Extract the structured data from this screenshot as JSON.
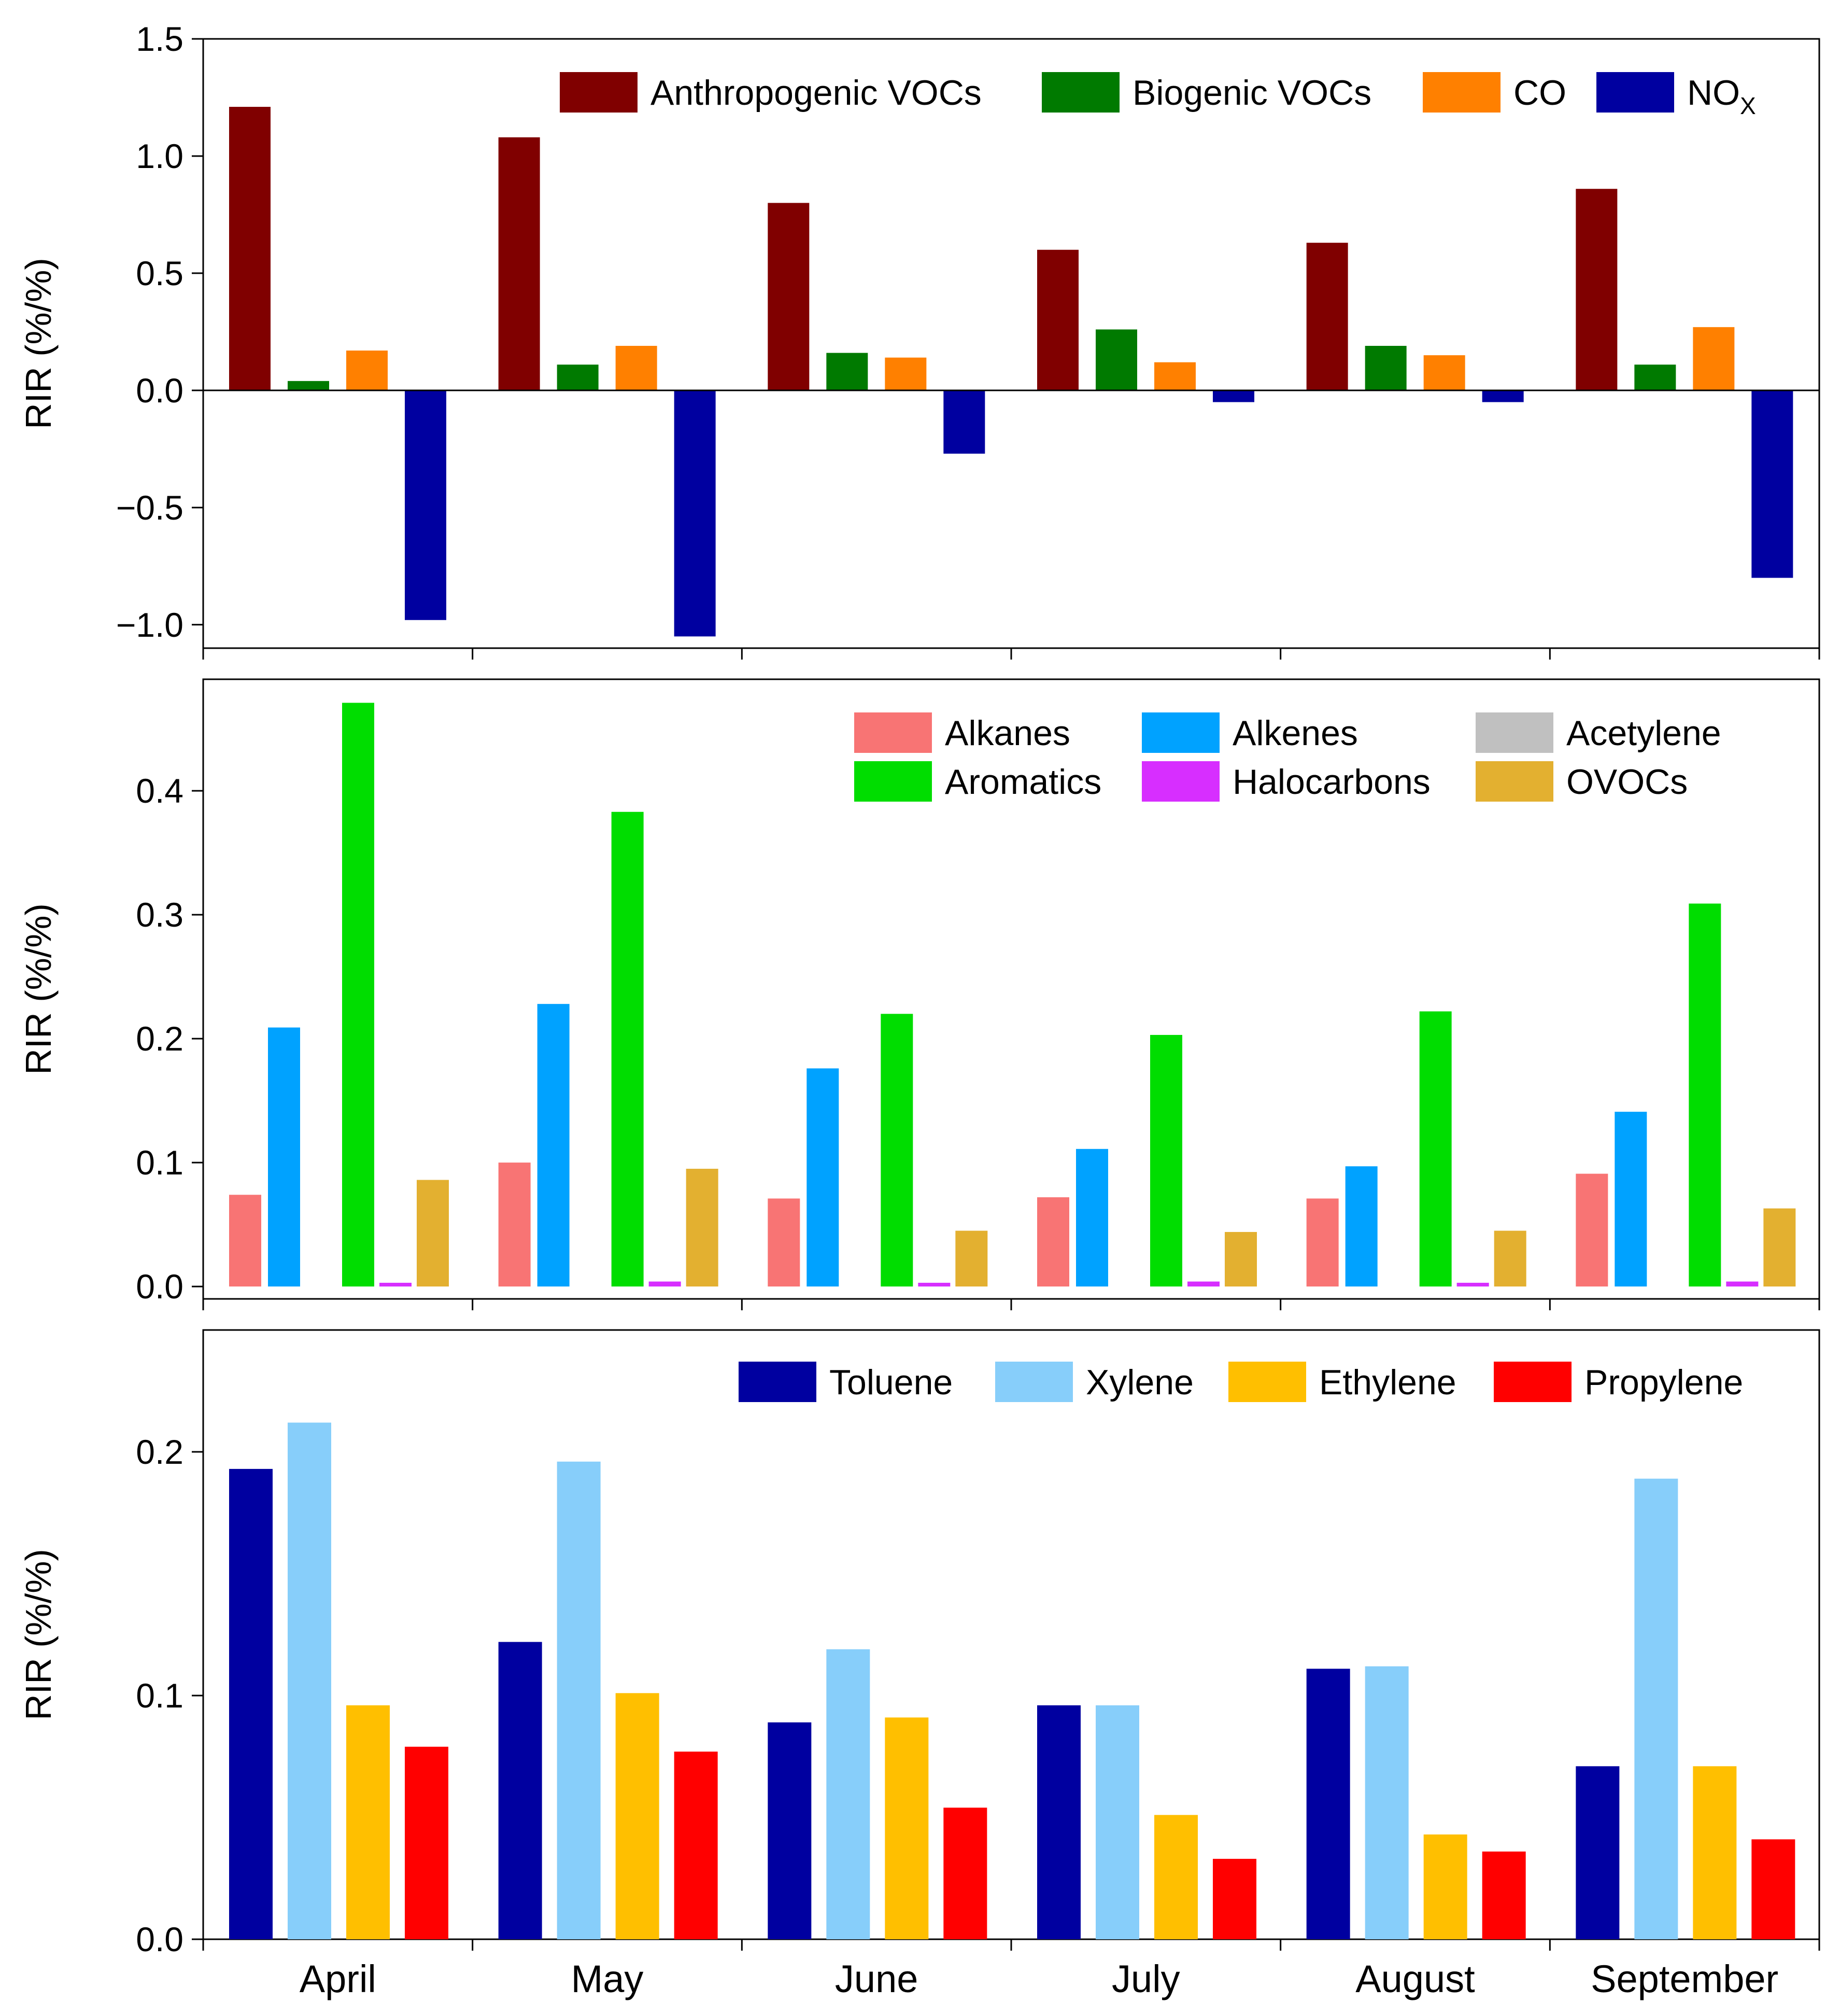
{
  "chart_data": [
    {
      "type": "bar",
      "categories": [
        "April",
        "May",
        "June",
        "July",
        "August",
        "September"
      ],
      "ylabel": "RIR (%/%)",
      "ylim": [
        -1.1,
        1.5
      ],
      "yticks": [
        -1.0,
        -0.5,
        0.0,
        0.5,
        1.0,
        1.5
      ],
      "ytick_labels": [
        "−1.0",
        "−0.5",
        "0.0",
        "0.5",
        "1.0",
        "1.5"
      ],
      "zero_line": true,
      "legend_position": "top-right",
      "series": [
        {
          "name": "Anthropogenic VOCs",
          "color": "#800000",
          "values": [
            1.21,
            1.08,
            0.8,
            0.6,
            0.63,
            0.86
          ]
        },
        {
          "name": "Biogenic VOCs",
          "color": "#007A00",
          "values": [
            0.04,
            0.11,
            0.16,
            0.26,
            0.19,
            0.11
          ]
        },
        {
          "name": "CO",
          "color": "#FF8000",
          "values": [
            0.17,
            0.19,
            0.14,
            0.12,
            0.15,
            0.27
          ]
        },
        {
          "name": "NO",
          "name_sub": "X",
          "color": "#0000A0",
          "values": [
            -0.98,
            -1.05,
            -0.27,
            -0.05,
            -0.05,
            -0.8
          ]
        }
      ]
    },
    {
      "type": "bar",
      "categories": [
        "April",
        "May",
        "June",
        "July",
        "August",
        "September"
      ],
      "ylabel": "RIR (%/%)",
      "ylim": [
        -0.01,
        0.49
      ],
      "yticks": [
        0.0,
        0.1,
        0.2,
        0.3,
        0.4
      ],
      "ytick_labels": [
        "0.0",
        "0.1",
        "0.2",
        "0.3",
        "0.4"
      ],
      "legend_position": "top-right",
      "series": [
        {
          "name": "Alkanes",
          "color": "#F87474",
          "values": [
            0.074,
            0.1,
            0.071,
            0.072,
            0.071,
            0.091
          ]
        },
        {
          "name": "Alkenes",
          "color": "#00A2FF",
          "values": [
            0.209,
            0.228,
            0.176,
            0.111,
            0.097,
            0.141
          ]
        },
        {
          "name": "Acetylene",
          "color": "#C0C0C0",
          "values": [
            0.0,
            0.0,
            0.0,
            0.0,
            0.0,
            0.0
          ]
        },
        {
          "name": "Aromatics",
          "color": "#00DD00",
          "values": [
            0.471,
            0.383,
            0.22,
            0.203,
            0.222,
            0.309
          ]
        },
        {
          "name": "Halocarbons",
          "color": "#D72EFF",
          "values": [
            0.003,
            0.004,
            0.003,
            0.004,
            0.003,
            0.004
          ]
        },
        {
          "name": "OVOCs",
          "color": "#E3B030",
          "values": [
            0.086,
            0.095,
            0.045,
            0.044,
            0.045,
            0.063
          ]
        }
      ]
    },
    {
      "type": "bar",
      "categories": [
        "April",
        "May",
        "June",
        "July",
        "August",
        "September"
      ],
      "ylabel": "RIR (%/%)",
      "ylim": [
        0.0,
        0.25
      ],
      "yticks": [
        0.0,
        0.1,
        0.2
      ],
      "ytick_labels": [
        "0.0",
        "0.1",
        "0.2"
      ],
      "legend_position": "top-right",
      "series": [
        {
          "name": "Toluene",
          "color": "#0000A0",
          "values": [
            0.193,
            0.122,
            0.089,
            0.096,
            0.111,
            0.071
          ]
        },
        {
          "name": "Xylene",
          "color": "#87CEFA",
          "values": [
            0.212,
            0.196,
            0.119,
            0.096,
            0.112,
            0.189
          ]
        },
        {
          "name": "Ethylene",
          "color": "#FFBF00",
          "values": [
            0.096,
            0.101,
            0.091,
            0.051,
            0.043,
            0.071
          ]
        },
        {
          "name": "Propylene",
          "color": "#FF0000",
          "values": [
            0.079,
            0.077,
            0.054,
            0.033,
            0.036,
            0.041
          ]
        }
      ]
    }
  ]
}
